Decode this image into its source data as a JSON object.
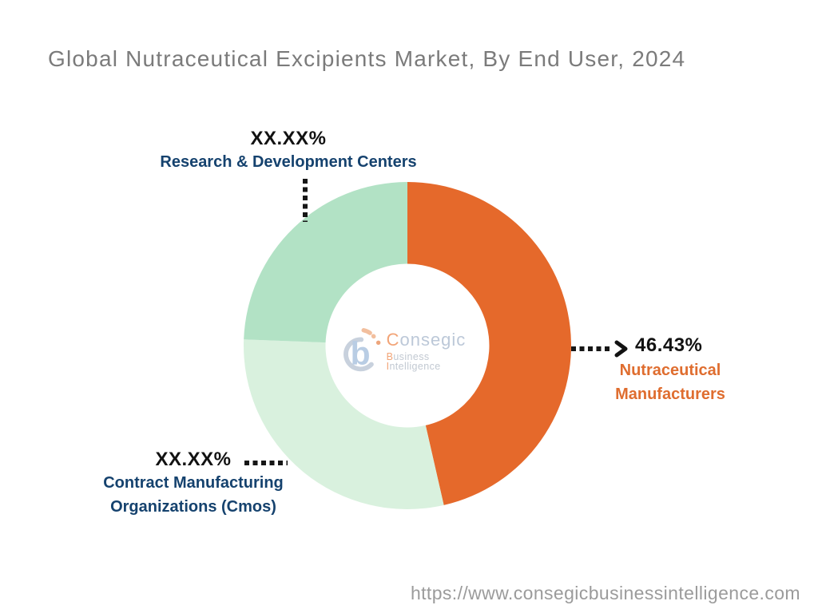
{
  "title": "Global Nutraceutical Excipients Market, By End User, 2024",
  "colors": {
    "navy": "#15426E",
    "orange": "#E5692B",
    "orange_label": "#DF6D2F",
    "light_green": "#D9F1DE",
    "medium_green": "#B2E2C5",
    "title_gray": "#7B7B7B",
    "url_gray": "#9B9B9B",
    "ink": "#121212",
    "bg": "#FFFFFF"
  },
  "chart_data": {
    "type": "pie",
    "donut": true,
    "title": "Global Nutraceutical Excipients Market, By End User, 2024",
    "start_angle_deg": 0,
    "direction": "clockwise",
    "inner_radius_ratio": 0.5,
    "segments": [
      {
        "id": "nutraceutical-manufacturers",
        "name": "Nutraceutical Manufacturers",
        "label_lines": [
          "Nutraceutical",
          "Manufacturers"
        ],
        "display_value": "46.43%",
        "value_pct": 46.43,
        "color": "#E5692B"
      },
      {
        "id": "contract-manufacturing-organizations",
        "name": "Contract Manufacturing Organizations (Cmos)",
        "label_lines": [
          "Contract Manufacturing",
          "Organizations (Cmos)"
        ],
        "display_value": "XX.XX%",
        "value_pct": 29.17,
        "color": "#D9F1DE"
      },
      {
        "id": "research-development-centers",
        "name": "Research & Development Centers",
        "label_lines": [
          "Research & Development Centers"
        ],
        "display_value": "XX.XX%",
        "value_pct": 24.4,
        "color": "#B2E2C5"
      }
    ]
  },
  "watermark": {
    "brand_c": "C",
    "brand_rest": "onsegic",
    "tag_b": "B",
    "tag_usiness": "usiness ",
    "tag_i": "I",
    "tag_ntelligence": "ntelligence"
  },
  "footer": {
    "source_url": "https://www.consegicbusinessintelligence.com"
  }
}
